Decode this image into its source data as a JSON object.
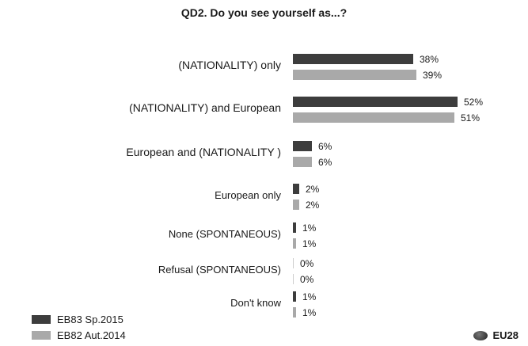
{
  "title": "QD2. Do you see yourself as...?",
  "colors": {
    "series_a": "#3d3d3d",
    "series_b": "#a9a9a9"
  },
  "eu_label": "EU28",
  "chart_data": {
    "type": "bar",
    "orientation": "horizontal",
    "title": "QD2. Do you see yourself as...?",
    "categories": [
      "(NATIONALITY) only",
      "(NATIONALITY) and European",
      "European and (NATIONALITY )",
      "European only",
      "None (SPONTANEOUS)",
      "Refusal (SPONTANEOUS)",
      "Don't know"
    ],
    "series": [
      {
        "name": "EB83 Sp.2015",
        "values": [
          38,
          52,
          6,
          2,
          1,
          0,
          1
        ]
      },
      {
        "name": "EB82 Aut.2014",
        "values": [
          39,
          51,
          6,
          2,
          1,
          0,
          1
        ]
      }
    ],
    "value_suffix": "%",
    "legend_position": "bottom-left"
  }
}
